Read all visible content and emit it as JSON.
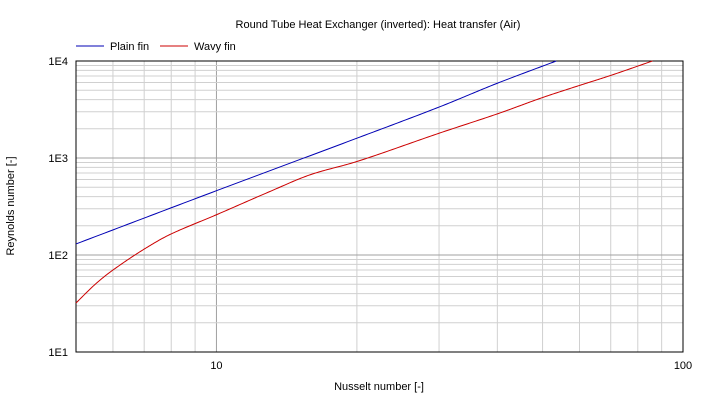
{
  "chart_data": {
    "type": "line",
    "title": "Round Tube Heat Exchanger (inverted): Heat transfer (Air)",
    "xlabel": "Nusselt number [-]",
    "ylabel": "Reynolds number [-]",
    "x_scale": "log",
    "y_scale": "log",
    "xlim": [
      5,
      100
    ],
    "ylim": [
      10,
      10000
    ],
    "grid": true,
    "legend_position": "top-left",
    "x_tick_labels": [
      {
        "value": 10,
        "label": "10"
      },
      {
        "value": 100,
        "label": "100"
      }
    ],
    "y_tick_labels": [
      {
        "value": 10,
        "label": "1E1"
      },
      {
        "value": 100,
        "label": "1E2"
      },
      {
        "value": 1000,
        "label": "1E3"
      },
      {
        "value": 10000,
        "label": "1E4"
      }
    ],
    "series": [
      {
        "name": "Plain fin",
        "color": "#0000b4",
        "points": [
          [
            5,
            130
          ],
          [
            10,
            460
          ],
          [
            20,
            1600
          ],
          [
            30,
            3350
          ],
          [
            40,
            5900
          ],
          [
            53.5,
            10000
          ]
        ]
      },
      {
        "name": "Wavy fin",
        "color": "#cc0000",
        "points": [
          [
            5,
            32
          ],
          [
            5.5,
            50
          ],
          [
            6,
            70
          ],
          [
            7,
            115
          ],
          [
            8,
            165
          ],
          [
            10,
            260
          ],
          [
            13,
            450
          ],
          [
            16,
            680
          ],
          [
            20,
            920
          ],
          [
            30,
            1800
          ],
          [
            40,
            2850
          ],
          [
            50,
            4200
          ],
          [
            60,
            5600
          ],
          [
            70,
            7100
          ],
          [
            86,
            10000
          ]
        ]
      }
    ]
  }
}
